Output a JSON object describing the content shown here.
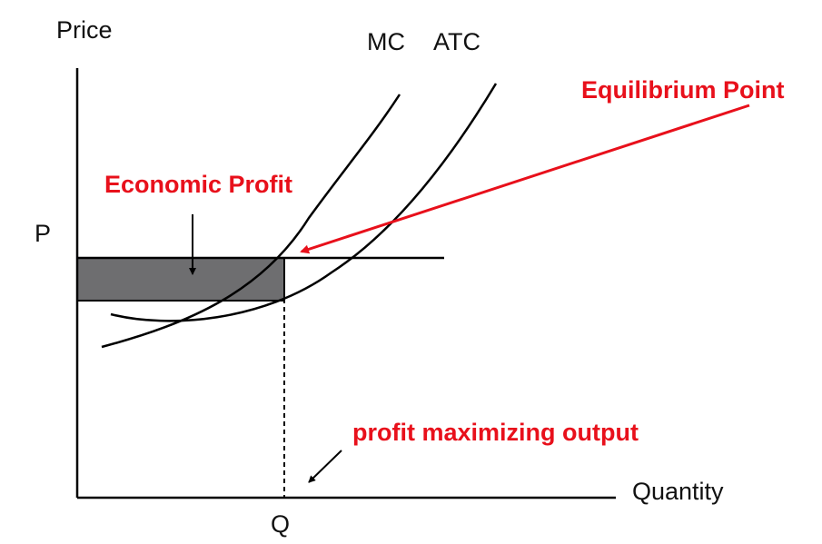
{
  "chart_data": {
    "type": "line",
    "title": "",
    "xlabel": "Quantity",
    "ylabel": "Price",
    "x_tick_labels": [
      "Q"
    ],
    "y_tick_labels": [
      "P"
    ],
    "series": [
      {
        "name": "MC"
      },
      {
        "name": "ATC"
      }
    ],
    "annotations": {
      "profit_area": "Economic Profit",
      "equilibrium": "Equilibrium Point",
      "output": "profit maximizing output"
    },
    "grid": false,
    "legend": "none"
  },
  "colors": {
    "axis": "#000000",
    "curve": "#000000",
    "annotation": "#e8101b",
    "profit_fill": "#6e6e70"
  }
}
